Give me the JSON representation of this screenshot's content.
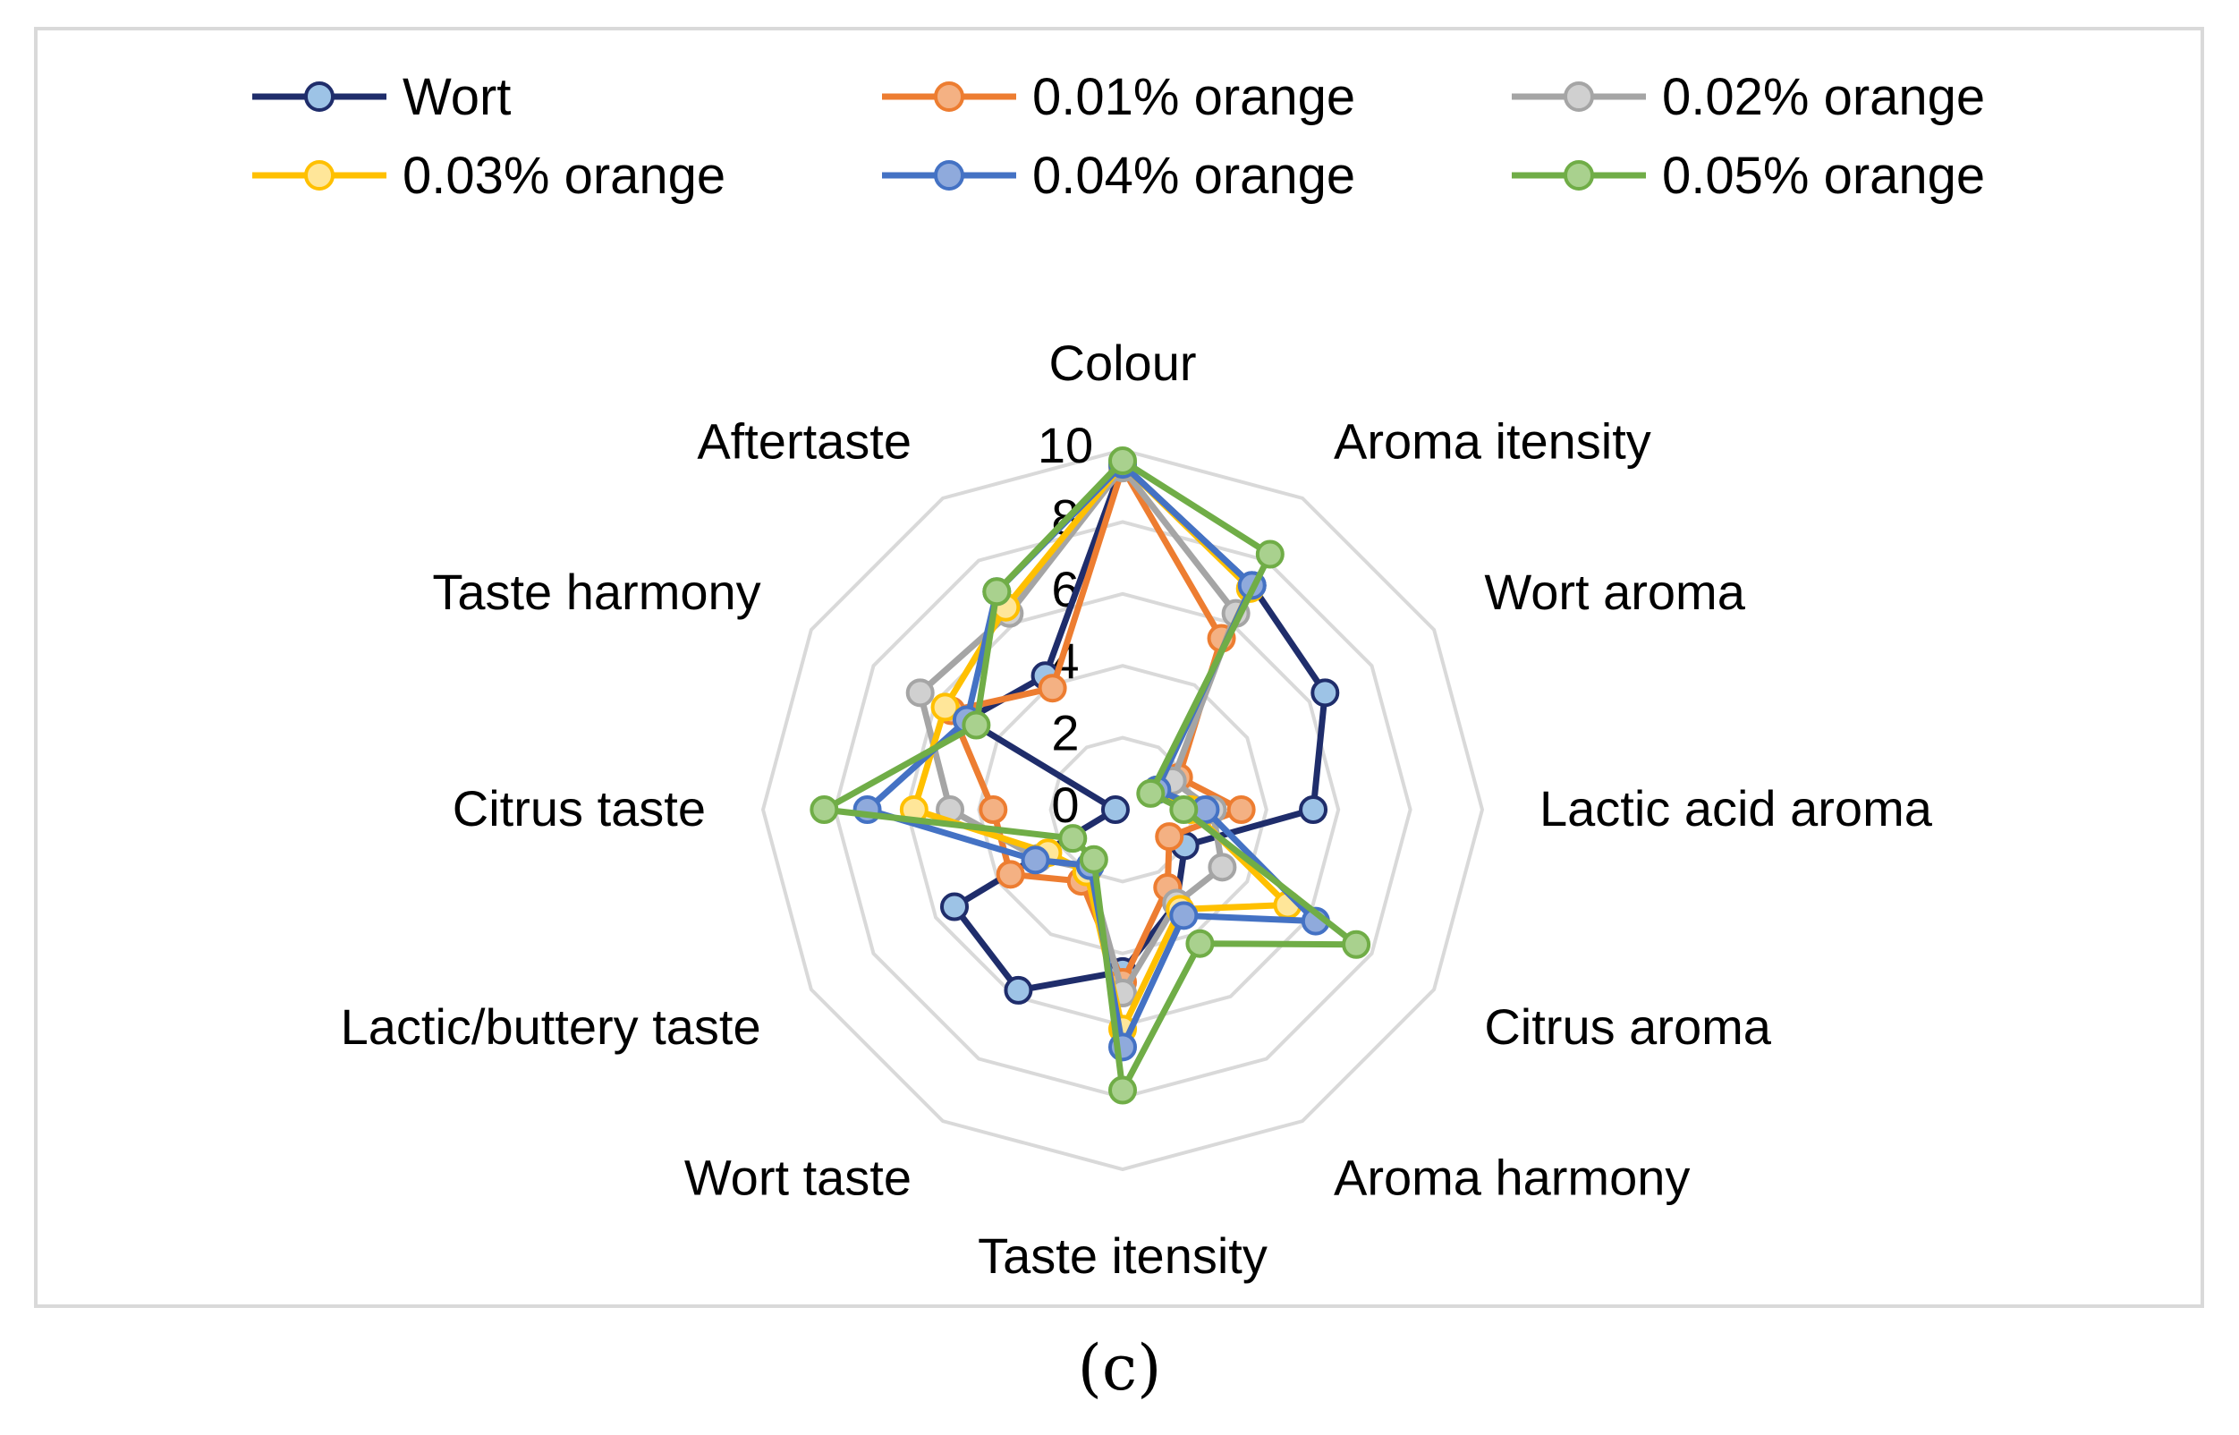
{
  "panel_label": "(c)",
  "chart_data": {
    "type": "radar",
    "categories": [
      "Colour",
      "Aroma itensity",
      "Wort aroma",
      "Lactic acid aroma",
      "Citrus aroma",
      "Aroma harmony",
      "Taste itensity",
      "Wort taste",
      "Lactic/buttery taste",
      "Citrus taste",
      "Taste harmony",
      "Aftertaste"
    ],
    "rlim": [
      0,
      10
    ],
    "ticks": [
      0,
      2,
      4,
      6,
      8,
      10
    ],
    "tick_labels": [
      "0",
      "2",
      "4",
      "6",
      "8",
      "10"
    ],
    "grid": true,
    "legend_position": "top",
    "series": [
      {
        "name": "Wort",
        "color": "#1f2d6b",
        "marker_fill": "#9dc3e6",
        "values": [
          9.6,
          7.2,
          6.5,
          5.3,
          2.0,
          3.0,
          4.5,
          5.8,
          5.4,
          0.2,
          5.0,
          4.3
        ]
      },
      {
        "name": "0.01% orange",
        "color": "#ed7d31",
        "marker_fill": "#f4b183",
        "values": [
          9.5,
          5.5,
          1.8,
          3.3,
          1.5,
          2.5,
          4.8,
          2.3,
          3.6,
          3.6,
          5.5,
          3.9
        ]
      },
      {
        "name": "0.02% orange",
        "color": "#a5a5a5",
        "marker_fill": "#d0d0d0",
        "values": [
          9.5,
          6.3,
          1.6,
          2.5,
          3.2,
          3.0,
          5.1,
          1.9,
          2.7,
          4.8,
          6.5,
          6.3
        ]
      },
      {
        "name": "0.03% orange",
        "color": "#ffc000",
        "marker_fill": "#ffe699",
        "values": [
          9.6,
          7.1,
          1.1,
          1.9,
          5.3,
          3.2,
          6.1,
          2.0,
          2.4,
          5.8,
          5.7,
          6.5
        ]
      },
      {
        "name": "0.04% orange",
        "color": "#4472c4",
        "marker_fill": "#8faadc",
        "values": [
          9.6,
          7.2,
          1.1,
          2.3,
          6.2,
          3.4,
          6.6,
          1.8,
          2.8,
          7.1,
          5.0,
          7.0
        ]
      },
      {
        "name": "0.05% orange",
        "color": "#70ad47",
        "marker_fill": "#a9d18e",
        "values": [
          9.7,
          8.2,
          0.9,
          1.7,
          7.5,
          4.3,
          7.8,
          1.6,
          1.6,
          8.3,
          4.7,
          7.0
        ]
      }
    ]
  }
}
